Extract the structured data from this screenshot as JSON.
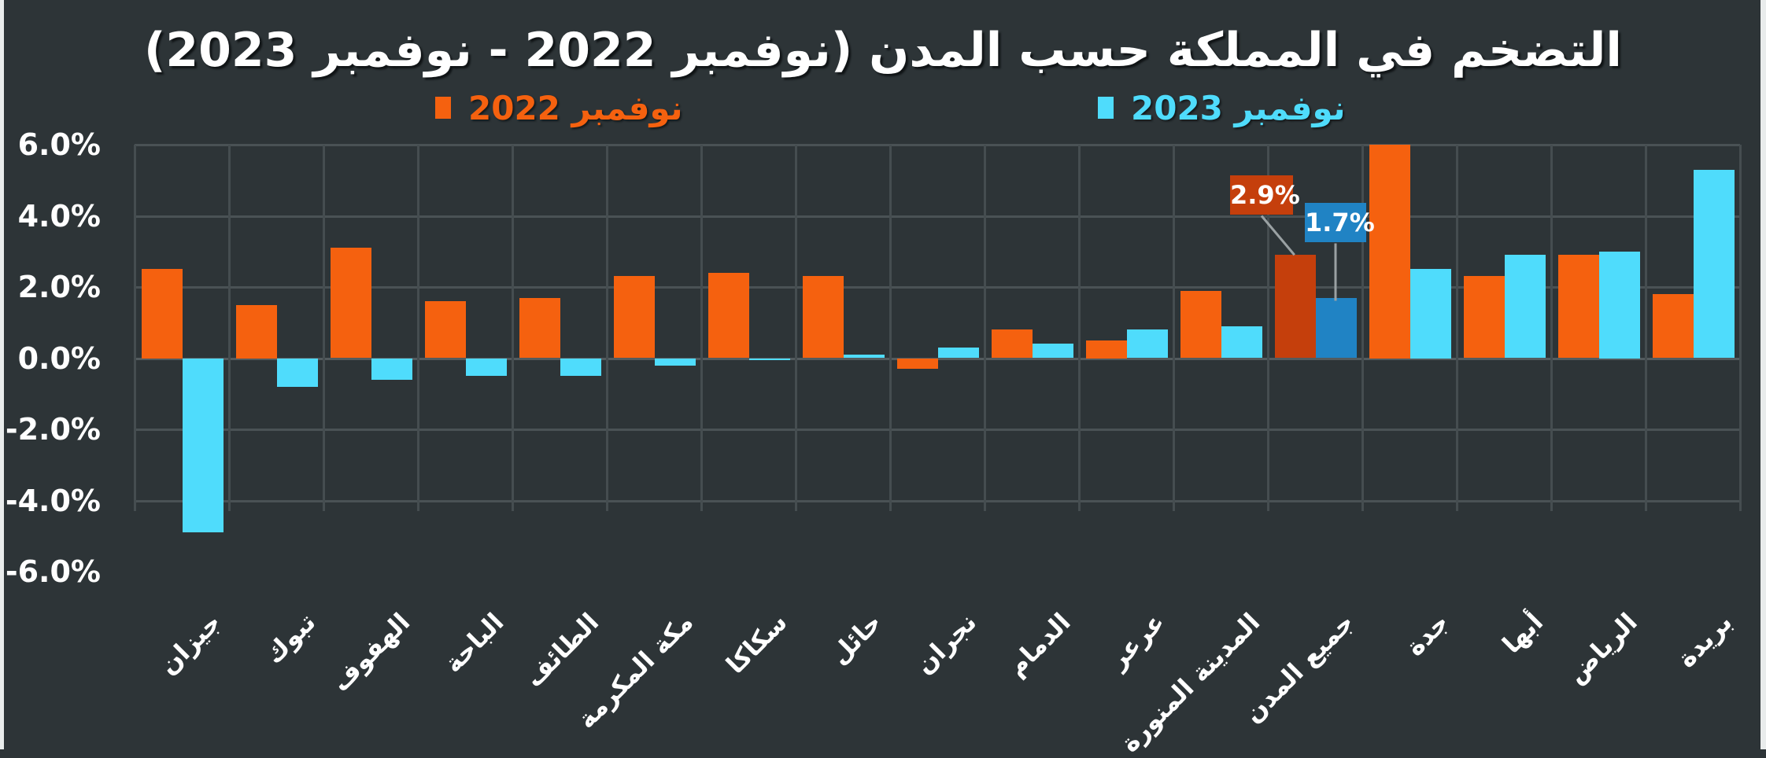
{
  "chart_data": {
    "type": "bar",
    "title": "التضخم في المملكة حسب المدن (نوفمبر 2022 - نوفمبر 2023)",
    "xlabel": "",
    "ylabel": "",
    "ylim": [
      -6.0,
      6.0
    ],
    "yticks": [
      "6.0%",
      "4.0%",
      "2.0%",
      "0.0%",
      "-2.0%",
      "-4.0%",
      "-6.0%"
    ],
    "ytick_values": [
      6,
      4,
      2,
      0,
      -2,
      -4,
      -6
    ],
    "grid": true,
    "legend_position": "top",
    "categories": [
      "جيزان",
      "تبوك",
      "الهفوف",
      "الباحة",
      "الطائف",
      "مكة المكرمة",
      "سكاكا",
      "حائل",
      "نجران",
      "الدمام",
      "عرعر",
      "المدينة المنورة",
      "جميع المدن",
      "جدة",
      "أبها",
      "الرياض",
      "بريدة"
    ],
    "series": [
      {
        "name": "نوفمبر 2022",
        "color": "#f5610f",
        "values": [
          2.5,
          1.5,
          3.1,
          1.6,
          1.7,
          2.3,
          2.4,
          2.3,
          -0.3,
          0.8,
          0.5,
          1.9,
          2.9,
          6.0,
          2.3,
          2.9,
          1.8
        ]
      },
      {
        "name": "نوفمبر 2023",
        "color": "#4fdcfc",
        "values": [
          -4.9,
          -0.8,
          -0.6,
          -0.5,
          -0.5,
          -0.2,
          0.0,
          0.1,
          0.3,
          0.4,
          0.8,
          0.9,
          1.7,
          2.5,
          2.9,
          3.0,
          5.3
        ]
      }
    ],
    "highlight": {
      "category": "جميع المدن",
      "colors": [
        "#c53f0c",
        "#2083c4"
      ],
      "labels": [
        "2.9%",
        "1.7%"
      ]
    },
    "annotations": [
      "2.9%",
      "1.7%"
    ]
  },
  "legend": {
    "item_2023": "نوفمبر 2023",
    "item_2022": "نوفمبر 2022"
  },
  "colors": {
    "background": "#2d3437",
    "grid": "#4a5255",
    "text": "#ffffff"
  }
}
